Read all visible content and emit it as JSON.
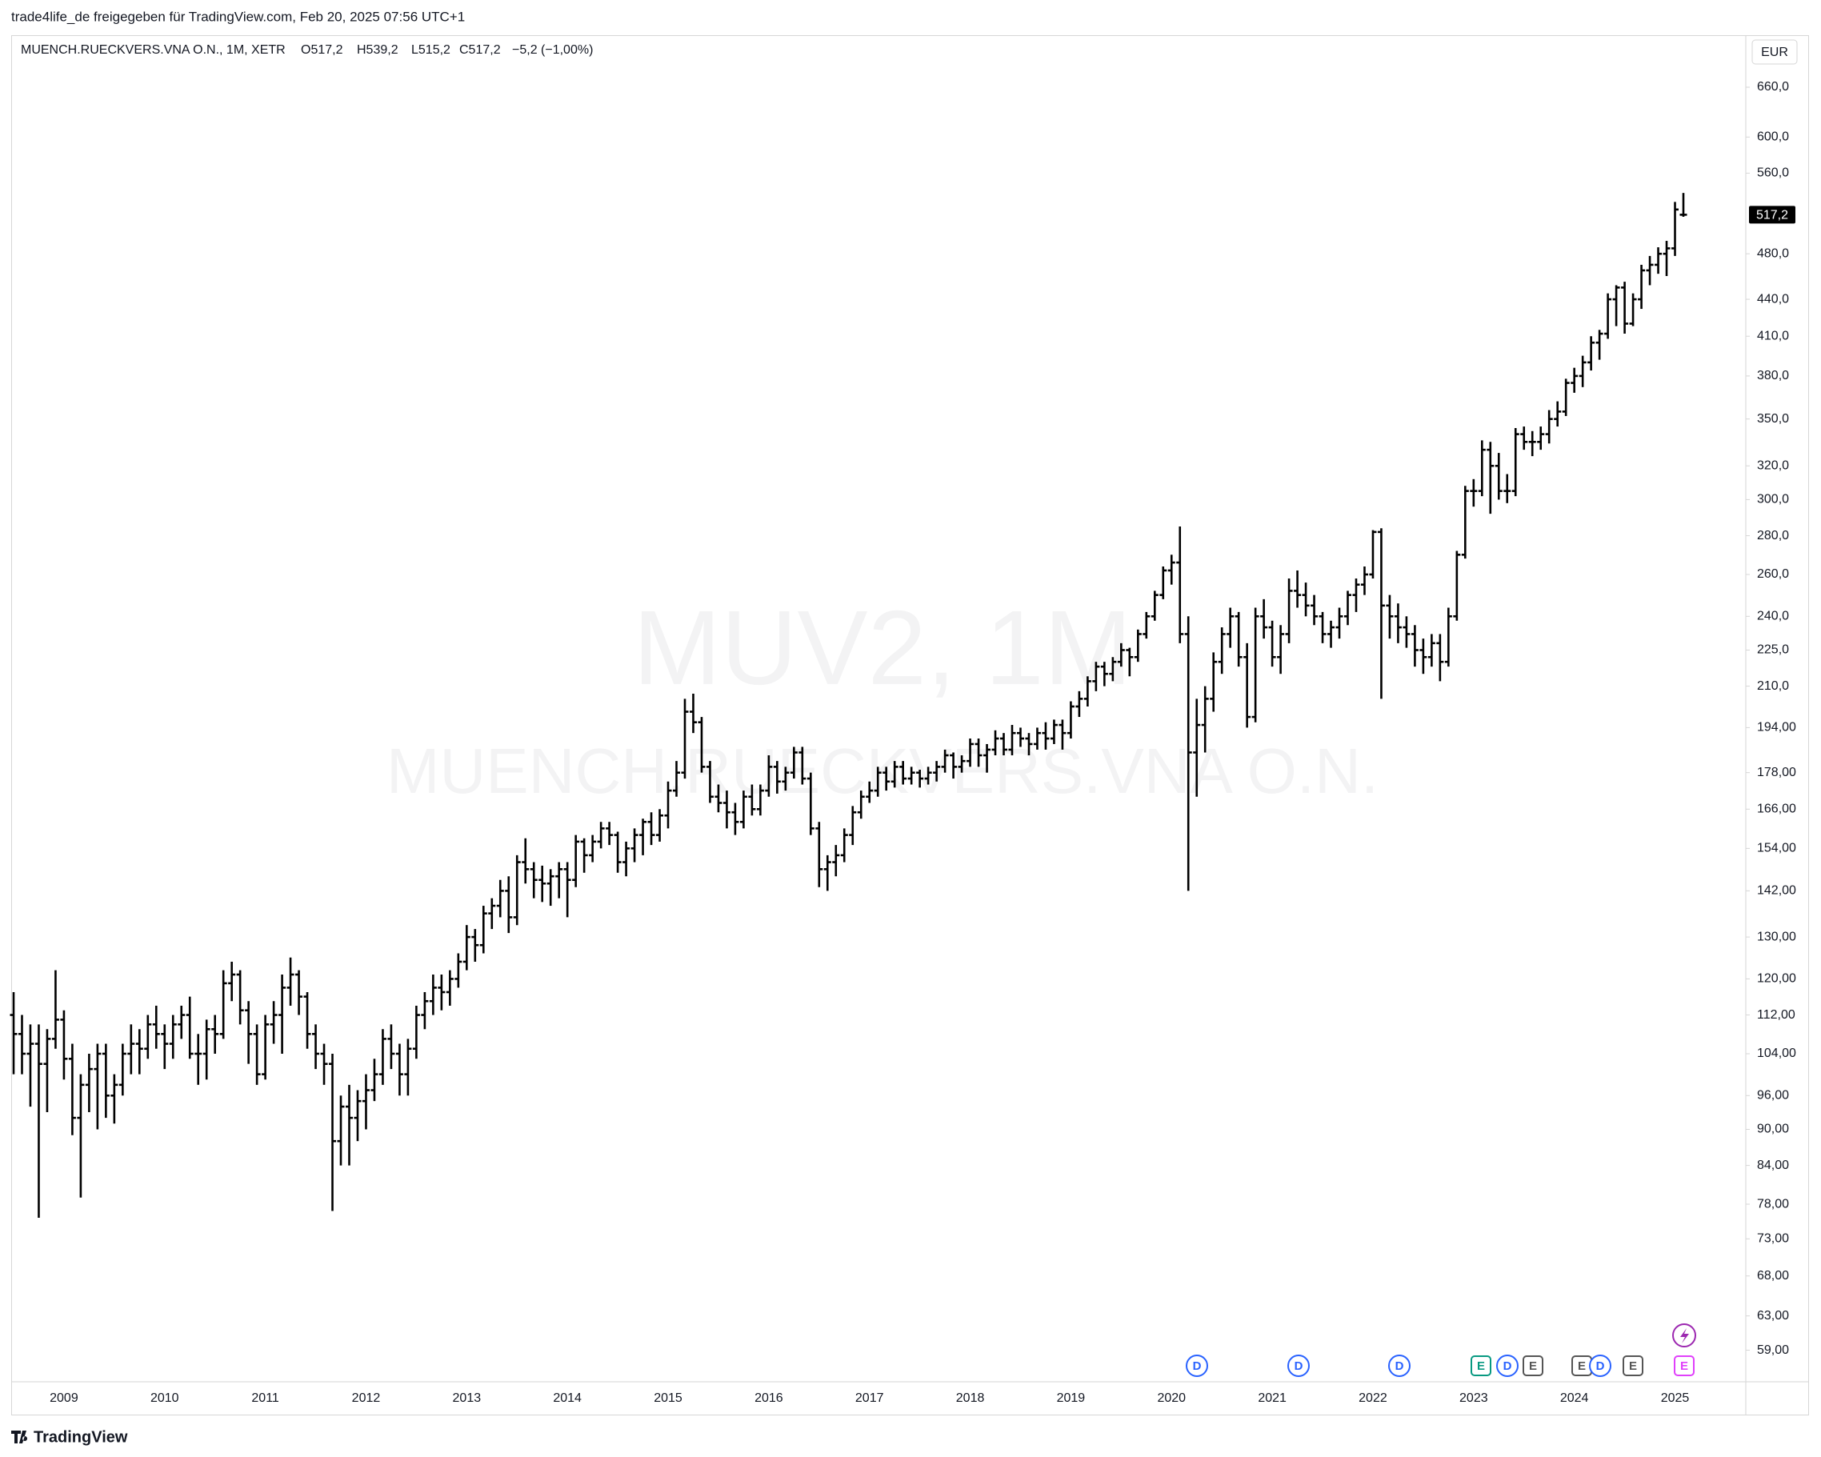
{
  "header": {
    "share": "trade4life_de freigegeben für TradingView.com, Feb 20, 2025 07:56 UTC+1"
  },
  "legend": {
    "symbol": "MUENCH.RUECKVERS.VNA O.N., 1M, XETR",
    "open": "O517,2",
    "high": "H539,2",
    "low": "L515,2",
    "close": "C517,2",
    "change": "−5,2 (−1,00%)"
  },
  "watermark": {
    "ticker": "MUV2, 1M",
    "name": "MUENCH.RUECKVERS.VNA O.N."
  },
  "currency": "EUR",
  "events": [
    "D",
    "D",
    "D",
    "E",
    "D",
    "E",
    "E",
    "D",
    "E",
    "E"
  ],
  "brand": "TradingView",
  "chart_data": {
    "type": "ohlc",
    "color": "#000000",
    "log_scale": true,
    "grid": false,
    "categories": [
      null,
      null,
      null,
      null,
      null,
      null,
      "2009",
      null,
      null,
      null,
      null,
      null,
      null,
      null,
      null,
      null,
      null,
      null,
      "2010",
      null,
      null,
      null,
      null,
      null,
      null,
      null,
      null,
      null,
      null,
      null,
      "2011",
      null,
      null,
      null,
      null,
      null,
      null,
      null,
      null,
      null,
      null,
      null,
      "2012",
      null,
      null,
      null,
      null,
      null,
      null,
      null,
      null,
      null,
      null,
      null,
      "2013",
      null,
      null,
      null,
      null,
      null,
      null,
      null,
      null,
      null,
      null,
      null,
      "2014",
      null,
      null,
      null,
      null,
      null,
      null,
      null,
      null,
      null,
      null,
      null,
      "2015",
      null,
      null,
      null,
      null,
      null,
      null,
      null,
      null,
      null,
      null,
      null,
      "2016",
      null,
      null,
      null,
      null,
      null,
      null,
      null,
      null,
      null,
      null,
      null,
      "2017",
      null,
      null,
      null,
      null,
      null,
      null,
      null,
      null,
      null,
      null,
      null,
      "2018",
      null,
      null,
      null,
      null,
      null,
      null,
      null,
      null,
      null,
      null,
      null,
      "2019",
      null,
      null,
      null,
      null,
      null,
      null,
      null,
      null,
      null,
      null,
      null,
      "2020",
      null,
      null,
      null,
      null,
      null,
      null,
      null,
      null,
      null,
      null,
      null,
      "2021",
      null,
      null,
      null,
      null,
      null,
      null,
      null,
      null,
      null,
      null,
      null,
      "2022",
      null,
      null,
      null,
      null,
      null,
      null,
      null,
      null,
      null,
      null,
      null,
      "2023",
      null,
      null,
      null,
      null,
      null,
      null,
      null,
      null,
      null,
      null,
      null,
      "2024",
      null,
      null,
      null,
      null,
      null,
      null,
      null,
      null,
      null,
      null,
      null,
      "2025",
      null
    ],
    "ohlc": [
      [
        112,
        117,
        100,
        108
      ],
      [
        108,
        112,
        100,
        104
      ],
      [
        104,
        110,
        94,
        106
      ],
      [
        106,
        110,
        76,
        102
      ],
      [
        102,
        109,
        93,
        107
      ],
      [
        107,
        122,
        105,
        111
      ],
      [
        111,
        113,
        99,
        103
      ],
      [
        103,
        106,
        89,
        92
      ],
      [
        92,
        100,
        79,
        98
      ],
      [
        98,
        104,
        93,
        101
      ],
      [
        101,
        106,
        90,
        104
      ],
      [
        104,
        106,
        92,
        96
      ],
      [
        96,
        100,
        91,
        98
      ],
      [
        98,
        106,
        96,
        104
      ],
      [
        104,
        110,
        100,
        106
      ],
      [
        106,
        109,
        100,
        105
      ],
      [
        105,
        112,
        103,
        110
      ],
      [
        110,
        114,
        105,
        108
      ],
      [
        108,
        110,
        101,
        106
      ],
      [
        106,
        112,
        103,
        110
      ],
      [
        110,
        114,
        107,
        112
      ],
      [
        112,
        116,
        103,
        104
      ],
      [
        104,
        108,
        98,
        104
      ],
      [
        104,
        111,
        99,
        109
      ],
      [
        109,
        112,
        104,
        108
      ],
      [
        108,
        122,
        107,
        119
      ],
      [
        119,
        124,
        115,
        121
      ],
      [
        121,
        122,
        110,
        113
      ],
      [
        113,
        115,
        102,
        108
      ],
      [
        108,
        110,
        98,
        100
      ],
      [
        100,
        112,
        99,
        110
      ],
      [
        110,
        115,
        106,
        112
      ],
      [
        112,
        121,
        104,
        118
      ],
      [
        118,
        125,
        114,
        121
      ],
      [
        121,
        122,
        112,
        116
      ],
      [
        116,
        117,
        105,
        108
      ],
      [
        108,
        110,
        101,
        104
      ],
      [
        104,
        106,
        98,
        102
      ],
      [
        102,
        104,
        77,
        88
      ],
      [
        88,
        96,
        84,
        94
      ],
      [
        94,
        98,
        84,
        92
      ],
      [
        92,
        97,
        88,
        95
      ],
      [
        95,
        100,
        90,
        97
      ],
      [
        97,
        103,
        95,
        100
      ],
      [
        100,
        109,
        98,
        107
      ],
      [
        107,
        110,
        101,
        104
      ],
      [
        104,
        106,
        96,
        100
      ],
      [
        100,
        107,
        96,
        105
      ],
      [
        105,
        114,
        103,
        112
      ],
      [
        112,
        117,
        109,
        115
      ],
      [
        115,
        121,
        112,
        118
      ],
      [
        118,
        121,
        113,
        117
      ],
      [
        117,
        122,
        114,
        120
      ],
      [
        120,
        126,
        118,
        124
      ],
      [
        124,
        133,
        122,
        130
      ],
      [
        130,
        132,
        124,
        128
      ],
      [
        128,
        138,
        126,
        136
      ],
      [
        136,
        140,
        132,
        138
      ],
      [
        138,
        145,
        135,
        142
      ],
      [
        142,
        146,
        131,
        135
      ],
      [
        135,
        152,
        133,
        150
      ],
      [
        150,
        157,
        144,
        148
      ],
      [
        148,
        150,
        140,
        145
      ],
      [
        145,
        149,
        139,
        144
      ],
      [
        144,
        148,
        138,
        146
      ],
      [
        146,
        150,
        140,
        148
      ],
      [
        148,
        150,
        135,
        145
      ],
      [
        145,
        158,
        143,
        156
      ],
      [
        156,
        157,
        147,
        152
      ],
      [
        152,
        158,
        150,
        156
      ],
      [
        156,
        162,
        154,
        160
      ],
      [
        160,
        162,
        155,
        158
      ],
      [
        158,
        159,
        147,
        150
      ],
      [
        150,
        156,
        146,
        154
      ],
      [
        154,
        160,
        150,
        158
      ],
      [
        158,
        163,
        152,
        162
      ],
      [
        162,
        165,
        155,
        158
      ],
      [
        158,
        166,
        156,
        164
      ],
      [
        164,
        175,
        160,
        172
      ],
      [
        172,
        182,
        170,
        178
      ],
      [
        178,
        205,
        176,
        200
      ],
      [
        200,
        207,
        192,
        196
      ],
      [
        196,
        198,
        178,
        180
      ],
      [
        180,
        182,
        168,
        170
      ],
      [
        170,
        174,
        165,
        168
      ],
      [
        168,
        172,
        160,
        165
      ],
      [
        165,
        168,
        158,
        162
      ],
      [
        162,
        172,
        160,
        170
      ],
      [
        170,
        174,
        164,
        166
      ],
      [
        166,
        174,
        164,
        172
      ],
      [
        172,
        184,
        170,
        180
      ],
      [
        180,
        182,
        171,
        175
      ],
      [
        175,
        180,
        172,
        178
      ],
      [
        178,
        187,
        176,
        185
      ],
      [
        185,
        187,
        174,
        176
      ],
      [
        176,
        178,
        158,
        160
      ],
      [
        160,
        162,
        143,
        148
      ],
      [
        148,
        152,
        142,
        150
      ],
      [
        150,
        155,
        146,
        152
      ],
      [
        152,
        160,
        150,
        158
      ],
      [
        158,
        167,
        155,
        165
      ],
      [
        165,
        172,
        163,
        170
      ],
      [
        170,
        175,
        168,
        172
      ],
      [
        172,
        180,
        170,
        178
      ],
      [
        178,
        180,
        172,
        175
      ],
      [
        175,
        182,
        173,
        180
      ],
      [
        180,
        182,
        174,
        176
      ],
      [
        176,
        180,
        174,
        178
      ],
      [
        178,
        179,
        173,
        176
      ],
      [
        176,
        180,
        174,
        178
      ],
      [
        178,
        182,
        175,
        180
      ],
      [
        180,
        186,
        178,
        184
      ],
      [
        184,
        185,
        176,
        180
      ],
      [
        180,
        184,
        178,
        182
      ],
      [
        182,
        190,
        180,
        188
      ],
      [
        188,
        190,
        180,
        184
      ],
      [
        184,
        188,
        178,
        186
      ],
      [
        186,
        193,
        184,
        190
      ],
      [
        190,
        192,
        184,
        186
      ],
      [
        186,
        195,
        184,
        192
      ],
      [
        192,
        194,
        187,
        190
      ],
      [
        190,
        192,
        184,
        188
      ],
      [
        188,
        194,
        186,
        192
      ],
      [
        192,
        196,
        186,
        190
      ],
      [
        190,
        197,
        188,
        195
      ],
      [
        195,
        197,
        186,
        192
      ],
      [
        192,
        204,
        190,
        202
      ],
      [
        202,
        208,
        198,
        205
      ],
      [
        205,
        214,
        202,
        212
      ],
      [
        212,
        220,
        208,
        218
      ],
      [
        218,
        220,
        210,
        215
      ],
      [
        215,
        222,
        212,
        220
      ],
      [
        220,
        228,
        218,
        225
      ],
      [
        225,
        226,
        214,
        222
      ],
      [
        222,
        234,
        220,
        232
      ],
      [
        232,
        242,
        230,
        240
      ],
      [
        240,
        252,
        238,
        250
      ],
      [
        250,
        264,
        248,
        262
      ],
      [
        262,
        270,
        255,
        266
      ],
      [
        266,
        285,
        228,
        232
      ],
      [
        232,
        240,
        142,
        185
      ],
      [
        185,
        205,
        170,
        195
      ],
      [
        195,
        210,
        185,
        205
      ],
      [
        205,
        224,
        200,
        220
      ],
      [
        220,
        235,
        215,
        232
      ],
      [
        232,
        244,
        226,
        240
      ],
      [
        240,
        242,
        218,
        222
      ],
      [
        222,
        228,
        194,
        198
      ],
      [
        198,
        244,
        196,
        240
      ],
      [
        240,
        248,
        230,
        235
      ],
      [
        235,
        238,
        218,
        222
      ],
      [
        222,
        236,
        215,
        232
      ],
      [
        232,
        258,
        228,
        252
      ],
      [
        252,
        262,
        244,
        250
      ],
      [
        250,
        256,
        240,
        245
      ],
      [
        245,
        250,
        236,
        240
      ],
      [
        240,
        242,
        228,
        232
      ],
      [
        232,
        238,
        226,
        235
      ],
      [
        235,
        244,
        230,
        240
      ],
      [
        240,
        252,
        236,
        250
      ],
      [
        250,
        258,
        242,
        255
      ],
      [
        255,
        264,
        250,
        260
      ],
      [
        260,
        283,
        258,
        282
      ],
      [
        282,
        284,
        205,
        245
      ],
      [
        245,
        250,
        230,
        240
      ],
      [
        240,
        246,
        228,
        235
      ],
      [
        235,
        240,
        226,
        232
      ],
      [
        232,
        236,
        218,
        225
      ],
      [
        225,
        230,
        215,
        222
      ],
      [
        222,
        232,
        218,
        228
      ],
      [
        228,
        232,
        212,
        220
      ],
      [
        220,
        244,
        218,
        240
      ],
      [
        240,
        272,
        238,
        270
      ],
      [
        270,
        308,
        268,
        305
      ],
      [
        305,
        312,
        296,
        305
      ],
      [
        305,
        336,
        302,
        330
      ],
      [
        330,
        335,
        292,
        320
      ],
      [
        320,
        328,
        300,
        305
      ],
      [
        305,
        315,
        298,
        305
      ],
      [
        305,
        344,
        302,
        340
      ],
      [
        340,
        345,
        330,
        335
      ],
      [
        335,
        342,
        326,
        335
      ],
      [
        335,
        345,
        330,
        340
      ],
      [
        340,
        356,
        334,
        350
      ],
      [
        350,
        362,
        345,
        355
      ],
      [
        355,
        378,
        352,
        375
      ],
      [
        375,
        386,
        368,
        380
      ],
      [
        380,
        395,
        372,
        390
      ],
      [
        390,
        410,
        384,
        405
      ],
      [
        405,
        415,
        392,
        412
      ],
      [
        412,
        445,
        408,
        440
      ],
      [
        440,
        452,
        418,
        450
      ],
      [
        450,
        455,
        412,
        420
      ],
      [
        420,
        445,
        418,
        440
      ],
      [
        440,
        470,
        432,
        465
      ],
      [
        465,
        478,
        452,
        470
      ],
      [
        470,
        486,
        462,
        480
      ],
      [
        480,
        492,
        460,
        485
      ],
      [
        485,
        530,
        478,
        522.4
      ],
      [
        517.2,
        539.2,
        515.2,
        517.2
      ]
    ],
    "ylim": [
      55.8,
      729
    ],
    "yticks": [
      {
        "value": 660,
        "label": "660,0"
      },
      {
        "value": 600,
        "label": "600,0"
      },
      {
        "value": 560,
        "label": "560,0"
      },
      {
        "value": 480,
        "label": "480,0"
      },
      {
        "value": 440,
        "label": "440,0"
      },
      {
        "value": 410,
        "label": "410,0"
      },
      {
        "value": 380,
        "label": "380,0"
      },
      {
        "value": 350,
        "label": "350,0"
      },
      {
        "value": 320,
        "label": "320,0"
      },
      {
        "value": 300,
        "label": "300,0"
      },
      {
        "value": 280,
        "label": "280,0"
      },
      {
        "value": 260,
        "label": "260,0"
      },
      {
        "value": 240,
        "label": "240,0"
      },
      {
        "value": 225,
        "label": "225,0"
      },
      {
        "value": 210,
        "label": "210,0"
      },
      {
        "value": 194,
        "label": "194,00"
      },
      {
        "value": 178,
        "label": "178,00"
      },
      {
        "value": 166,
        "label": "166,00"
      },
      {
        "value": 154,
        "label": "154,00"
      },
      {
        "value": 142,
        "label": "142,00"
      },
      {
        "value": 130,
        "label": "130,00"
      },
      {
        "value": 120,
        "label": "120,00"
      },
      {
        "value": 112,
        "label": "112,00"
      },
      {
        "value": 104,
        "label": "104,00"
      },
      {
        "value": 96,
        "label": "96,00"
      },
      {
        "value": 90,
        "label": "90,00"
      },
      {
        "value": 84,
        "label": "84,00"
      },
      {
        "value": 78,
        "label": "78,00"
      },
      {
        "value": 73,
        "label": "73,00"
      },
      {
        "value": 68,
        "label": "68,00"
      },
      {
        "value": 63,
        "label": "63,00"
      },
      {
        "value": 59,
        "label": "59,00"
      }
    ],
    "last_price": {
      "value": 517.2,
      "label": "517,2"
    }
  }
}
